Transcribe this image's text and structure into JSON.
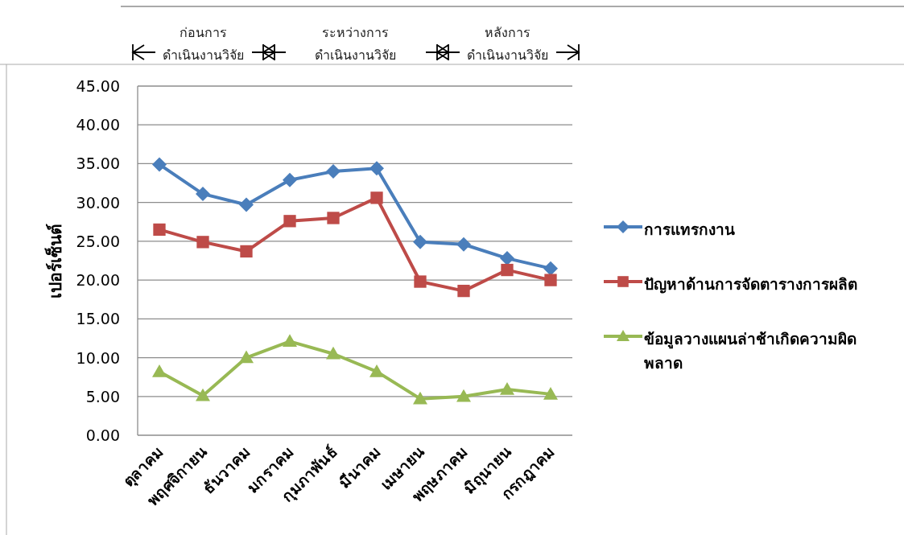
{
  "chart_data": {
    "type": "line",
    "ylabel": "เปอร์เซ็นต์",
    "categories": [
      "ตุลาคม",
      "พฤศจิกายน",
      "ธันวาคม",
      "มกราคม",
      "กุมภาพันธ์",
      "มีนาคม",
      "เมษายน",
      "พฤษภาคม",
      "มิถุนายน",
      "กรกฎาคม"
    ],
    "series": [
      {
        "name": "การแทรกงาน",
        "color": "#4a7ebb",
        "marker": "diamond",
        "values": [
          34.9,
          31.1,
          29.7,
          32.9,
          34.0,
          34.4,
          24.9,
          24.6,
          22.8,
          21.5
        ]
      },
      {
        "name": "ปัญหาด้านการจัดตารางการผลิต",
        "color": "#be4b48",
        "marker": "square",
        "values": [
          26.5,
          24.9,
          23.7,
          27.6,
          28.0,
          30.6,
          19.8,
          18.6,
          21.3,
          20.0
        ]
      },
      {
        "name": "ข้อมูลวางแผนล่าช้าเกิดความผิดพลาด",
        "color": "#98b954",
        "marker": "triangle",
        "values": [
          8.2,
          5.1,
          10.0,
          12.1,
          10.5,
          8.2,
          4.7,
          5.0,
          5.9,
          5.3
        ]
      }
    ],
    "ylim": [
      0,
      45
    ],
    "yticks": [
      {
        "value": 0,
        "label": "0.00"
      },
      {
        "value": 5,
        "label": "5.00"
      },
      {
        "value": 10,
        "label": "10.00"
      },
      {
        "value": 15,
        "label": "15.00"
      },
      {
        "value": 20,
        "label": "20.00"
      },
      {
        "value": 25,
        "label": "25.00"
      },
      {
        "value": 30,
        "label": "30.00"
      },
      {
        "value": 35,
        "label": "35.00"
      },
      {
        "value": 40,
        "label": "40.00"
      },
      {
        "value": 45,
        "label": "45.00"
      }
    ],
    "grid": "y",
    "legend": "right",
    "line_style": "solid",
    "annotations": [
      "ก่อนการ ดำเนินงานวิจัย",
      "ระหว่างการ ดำเนินงานวิจัย",
      "หลังการ ดำเนินงานวิจัย"
    ]
  }
}
